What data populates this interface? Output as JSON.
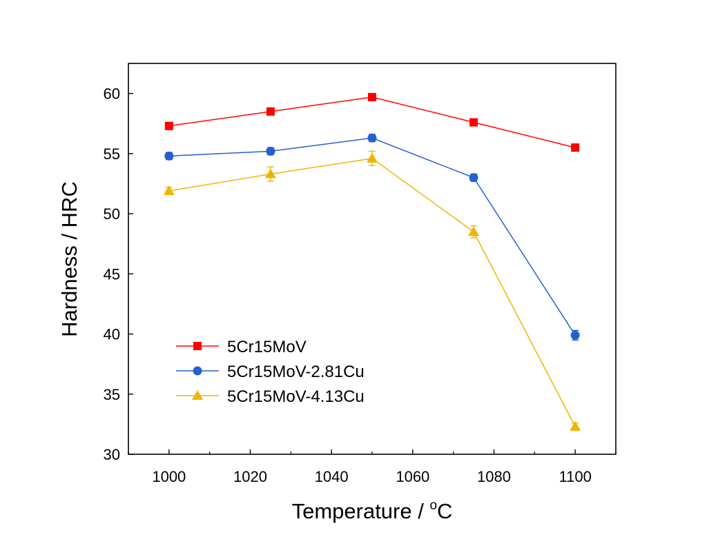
{
  "chart_data": {
    "type": "line",
    "xlabel": "Temperature / ",
    "xlabel_degree": "o",
    "xlabel_unit": "C",
    "ylabel": "Hardness / HRC",
    "xlim": [
      990,
      1110
    ],
    "ylim": [
      30,
      62.5
    ],
    "xticks": [
      1000,
      1020,
      1040,
      1060,
      1080,
      1100
    ],
    "yticks": [
      30,
      35,
      40,
      45,
      50,
      55,
      60
    ],
    "grid": false,
    "legend_position": "bottom-left",
    "x": [
      1000,
      1025,
      1050,
      1075,
      1100
    ],
    "series": [
      {
        "name": "5Cr15MoV",
        "color": "#ff0000",
        "marker": "square",
        "values": [
          57.3,
          58.5,
          59.7,
          57.6,
          55.5
        ],
        "errors": [
          0.3,
          0.3,
          0.3,
          0.3,
          0.3
        ]
      },
      {
        "name": "5Cr15MoV-2.81Cu",
        "color": "#2360d0",
        "marker": "circle",
        "values": [
          54.8,
          55.2,
          56.3,
          53.0,
          39.9
        ],
        "errors": [
          0.3,
          0.3,
          0.3,
          0.3,
          0.4
        ]
      },
      {
        "name": "5Cr15MoV-4.13Cu",
        "color": "#f0b400",
        "marker": "triangle",
        "values": [
          51.9,
          53.3,
          54.6,
          48.5,
          32.3
        ],
        "errors": [
          0.3,
          0.6,
          0.6,
          0.5,
          0.3
        ]
      }
    ]
  }
}
